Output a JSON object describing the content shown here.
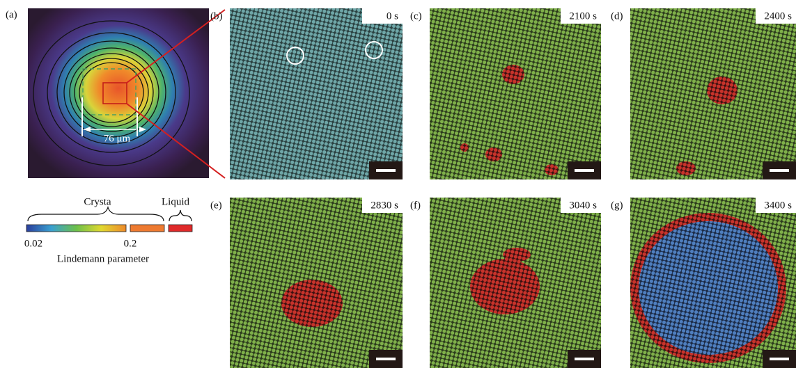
{
  "panel_a": {
    "label": "(a)",
    "scale": "76 μm"
  },
  "colorbar": {
    "crystal": "Crysta",
    "liquid": "Liquid",
    "min": "0.02",
    "mid": "0.2",
    "title": "Lindemann parameter"
  },
  "panels": [
    {
      "label": "(b)",
      "time": "0 s"
    },
    {
      "label": "(c)",
      "time": "2100 s"
    },
    {
      "label": "(d)",
      "time": "2400 s"
    },
    {
      "label": "(e)",
      "time": "2830 s"
    },
    {
      "label": "(f)",
      "time": "3040 s"
    },
    {
      "label": "(g)",
      "time": "3400 s"
    }
  ]
}
